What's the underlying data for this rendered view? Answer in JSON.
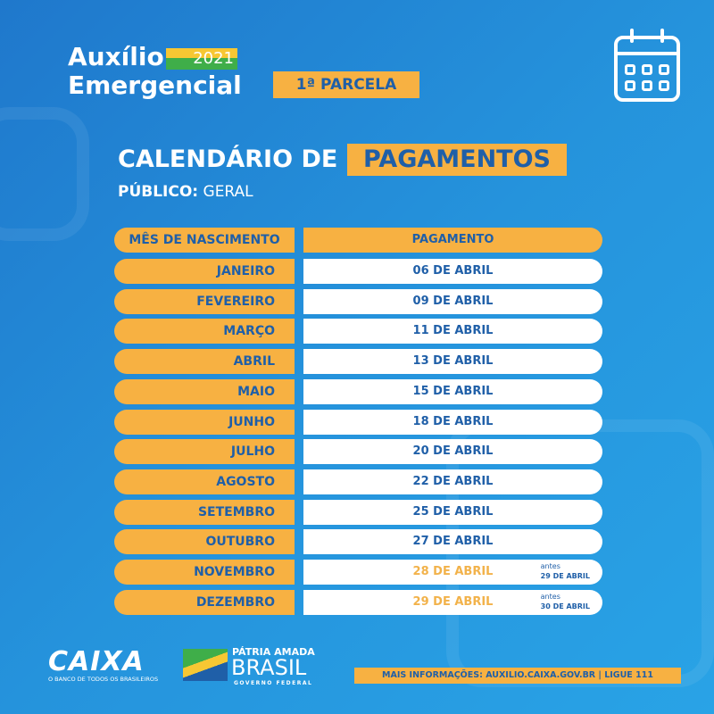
{
  "header": {
    "title_line1": "Auxílio",
    "title_line2": "Emergencial",
    "year": "2021",
    "parcela": "1ª PARCELA",
    "calendar_icon": "calendar-icon"
  },
  "heading": {
    "prefix": "CALENDÁRIO DE",
    "highlight": "PAGAMENTOS",
    "public_label": "PÚBLICO:",
    "public_value": "GERAL"
  },
  "table": {
    "headers": [
      "MÊS DE NASCIMENTO",
      "PAGAMENTO"
    ],
    "rows": [
      {
        "month": "JANEIRO",
        "date": "06 DE ABRIL"
      },
      {
        "month": "FEVEREIRO",
        "date": "09 DE ABRIL"
      },
      {
        "month": "MARÇO",
        "date": "11 DE ABRIL"
      },
      {
        "month": "ABRIL",
        "date": "13 DE ABRIL"
      },
      {
        "month": "MAIO",
        "date": "15 DE ABRIL"
      },
      {
        "month": "JUNHO",
        "date": "18 DE ABRIL"
      },
      {
        "month": "JULHO",
        "date": "20 DE ABRIL"
      },
      {
        "month": "AGOSTO",
        "date": "22 DE ABRIL"
      },
      {
        "month": "SETEMBRO",
        "date": "25 DE ABRIL"
      },
      {
        "month": "OUTUBRO",
        "date": "27 DE ABRIL"
      },
      {
        "month": "NOVEMBRO",
        "date": "28 DE ABRIL",
        "note_label": "antes",
        "note_date": "29 DE ABRIL"
      },
      {
        "month": "DEZEMBRO",
        "date": "29 DE ABRIL",
        "note_label": "antes",
        "note_date": "30 DE ABRIL"
      }
    ]
  },
  "footer": {
    "caixa": "CAIXA",
    "caixa_tagline": "O BANCO DE TODOS OS BRASILEIROS",
    "patria": "PÁTRIA AMADA",
    "brasil": "BRASIL",
    "governo": "GOVERNO FEDERAL",
    "info": "MAIS INFORMAÇÕES: AUXILIO.CAIXA.GOV.BR | LIGUE 111"
  },
  "colors": {
    "orange": "#f7b142",
    "blue_text": "#1f5fa8",
    "background": "#2593dc"
  }
}
